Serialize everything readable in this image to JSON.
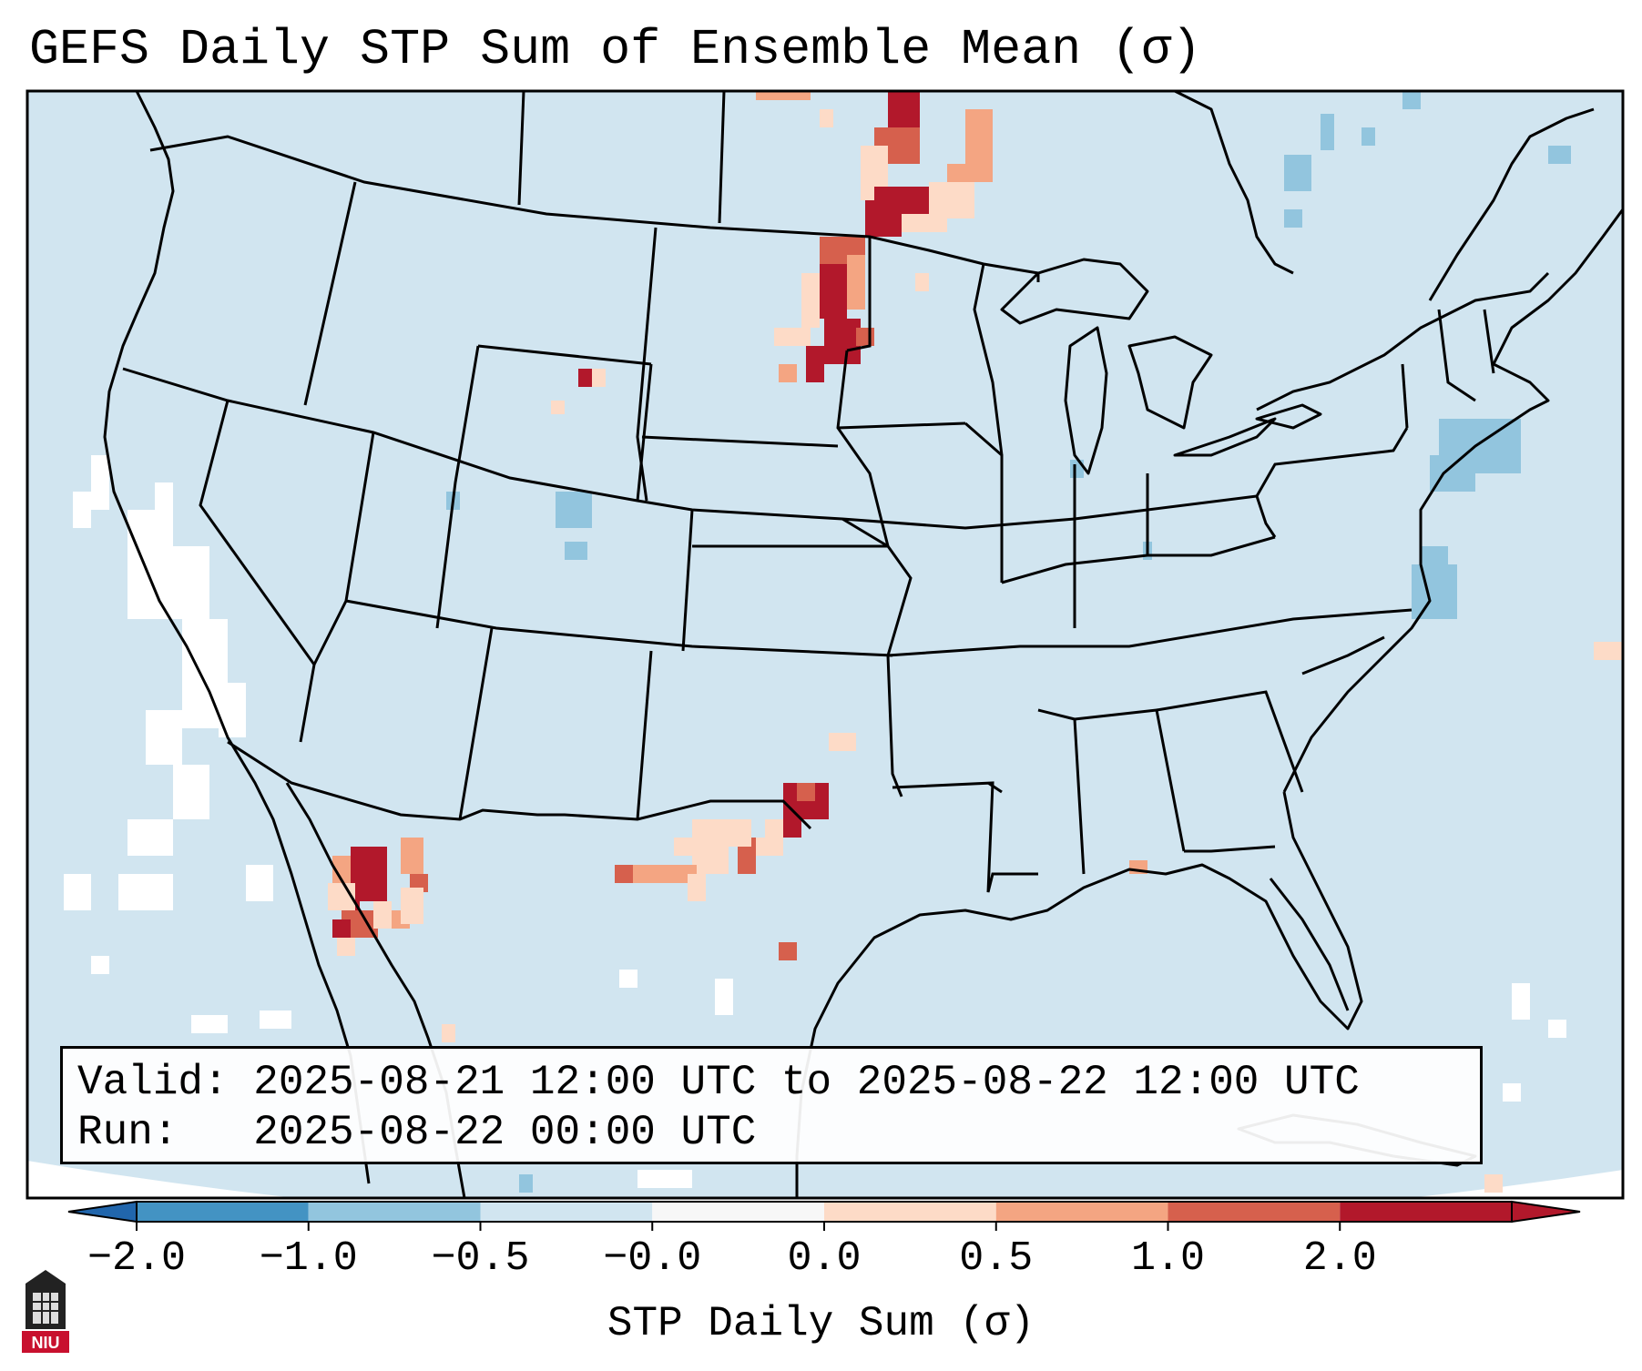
{
  "title": "GEFS Daily STP Sum of Ensemble Mean (σ)",
  "info": {
    "valid_line": "Valid: 2025-08-21 12:00 UTC to 2025-08-22 12:00 UTC",
    "run_line": "Run:   2025-08-22 00:00 UTC"
  },
  "colorbar": {
    "label": "STP Daily Sum (σ)",
    "ticks": [
      "−2.0",
      "−1.0",
      "−0.5",
      "−0.0",
      "0.0",
      "0.5",
      "1.0",
      "2.0"
    ],
    "colors": [
      "#4393c3",
      "#92c5de",
      "#d1e5f0",
      "#f7f7f7",
      "#fddbc7",
      "#f4a582",
      "#d6604d",
      "#b2182b"
    ],
    "extend_low_color": "#2166ac",
    "extend_high_color": "#b2182b"
  },
  "map": {
    "background_color": "#d1e5f0",
    "ocean_fill_color": "#ffffff",
    "border_color": "#000000"
  },
  "logo": {
    "text": "NIU",
    "color": "#c8102e"
  }
}
